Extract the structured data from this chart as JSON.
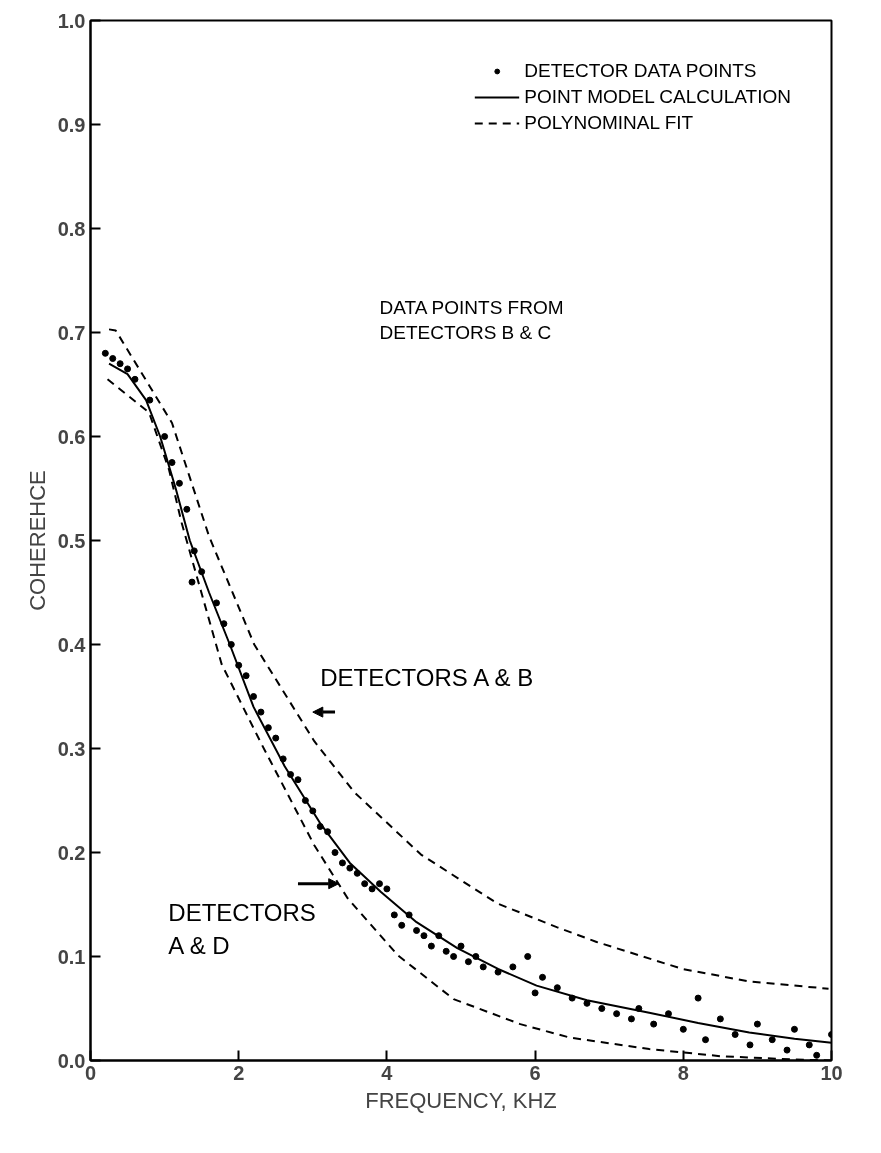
{
  "chart_data": {
    "type": "line",
    "xlabel": "FREQUENCY, KHZ",
    "ylabel": "COHEREHCE",
    "xlim": [
      0,
      10
    ],
    "ylim": [
      0,
      1
    ],
    "xticks": [
      0,
      2,
      4,
      6,
      8,
      10
    ],
    "yticks": [
      {
        "value": 0,
        "label": "0.0"
      },
      {
        "value": 0.1,
        "label": "0.1"
      },
      {
        "value": 0.2,
        "label": "0.2"
      },
      {
        "value": 0.3,
        "label": "0.3"
      },
      {
        "value": 0.4,
        "label": "0.4"
      },
      {
        "value": 0.5,
        "label": "0.5"
      },
      {
        "value": 0.6,
        "label": "0.6"
      },
      {
        "value": 0.7,
        "label": "0.7"
      },
      {
        "value": 0.8,
        "label": "0.8"
      },
      {
        "value": 0.9,
        "label": "0.9"
      },
      {
        "value": 1,
        "label": "1.0"
      }
    ],
    "grid": false,
    "legend": "top right",
    "series": [
      {
        "name": "DETECTOR DATA POINTS",
        "type": "scatter",
        "marker": "circle",
        "color": "#000000",
        "x": [
          0.2,
          0.3,
          0.4,
          0.5,
          0.6,
          0.8,
          1.0,
          1.1,
          1.2,
          1.3,
          1.37,
          1.4,
          1.5,
          1.7,
          1.8,
          1.9,
          2.0,
          2.1,
          2.2,
          2.3,
          2.4,
          2.5,
          2.6,
          2.7,
          2.8,
          2.9,
          3.0,
          3.1,
          3.2,
          3.3,
          3.4,
          3.5,
          3.6,
          3.7,
          3.8,
          3.9,
          4.0,
          4.1,
          4.2,
          4.3,
          4.4,
          4.5,
          4.6,
          4.7,
          4.8,
          4.9,
          5.0,
          5.1,
          5.2,
          5.3,
          5.5,
          5.7,
          5.9,
          6.0,
          6.1,
          6.3,
          6.5,
          6.7,
          6.9,
          7.1,
          7.3,
          7.4,
          7.6,
          7.8,
          8.0,
          8.2,
          8.3,
          8.5,
          8.7,
          8.9,
          9.0,
          9.2,
          9.4,
          9.5,
          9.7,
          9.8,
          10.0
        ],
        "values": [
          0.68,
          0.675,
          0.67,
          0.665,
          0.655,
          0.635,
          0.6,
          0.575,
          0.555,
          0.53,
          0.46,
          0.49,
          0.47,
          0.44,
          0.42,
          0.4,
          0.38,
          0.37,
          0.35,
          0.335,
          0.32,
          0.31,
          0.29,
          0.275,
          0.27,
          0.25,
          0.24,
          0.225,
          0.22,
          0.2,
          0.19,
          0.185,
          0.18,
          0.17,
          0.165,
          0.17,
          0.165,
          0.14,
          0.13,
          0.14,
          0.125,
          0.12,
          0.11,
          0.12,
          0.105,
          0.1,
          0.11,
          0.095,
          0.1,
          0.09,
          0.085,
          0.09,
          0.1,
          0.065,
          0.08,
          0.07,
          0.06,
          0.055,
          0.05,
          0.045,
          0.04,
          0.05,
          0.035,
          0.045,
          0.03,
          0.06,
          0.02,
          0.04,
          0.025,
          0.015,
          0.035,
          0.02,
          0.01,
          0.03,
          0.015,
          0.005,
          0.025
        ]
      },
      {
        "name": "POINT MODEL CALCULATION",
        "line_style": "solid",
        "color": "#000000",
        "x": [
          0.25,
          0.5,
          0.75,
          0.94,
          1.15,
          1.34,
          1.6,
          1.88,
          2.2,
          2.62,
          3.11,
          3.5,
          3.92,
          4.4,
          4.95,
          5.5,
          6.02,
          6.7,
          7.54,
          8.2,
          8.89,
          9.5,
          10
        ],
        "values": [
          0.67,
          0.66,
          0.635,
          0.6,
          0.55,
          0.5,
          0.45,
          0.4,
          0.34,
          0.283,
          0.227,
          0.19,
          0.162,
          0.133,
          0.108,
          0.088,
          0.072,
          0.058,
          0.046,
          0.036,
          0.027,
          0.021,
          0.017
        ]
      },
      {
        "name": "POLYNOMINAL FIT",
        "line_style": "dashed",
        "color": "#000000",
        "x": [
          0.25,
          0.34,
          1.1,
          1.6,
          2.21,
          3.02,
          3.56,
          4.46,
          5.49,
          6.3,
          6.83,
          7.99,
          8.89,
          9.96
        ],
        "values": [
          0.703,
          0.702,
          0.613,
          0.504,
          0.4,
          0.307,
          0.258,
          0.198,
          0.151,
          0.128,
          0.114,
          0.088,
          0.076,
          0.069
        ]
      },
      {
        "line_style": "dashed",
        "color": "#000000",
        "x": [
          0.23,
          0.79,
          1.06,
          1.23,
          1.77,
          2.31,
          3.02,
          3.47,
          4.15,
          4.9,
          5.8,
          6.47,
          7.54,
          8.52,
          9.5,
          10
        ],
        "values": [
          0.655,
          0.623,
          0.568,
          0.517,
          0.381,
          0.304,
          0.207,
          0.156,
          0.101,
          0.059,
          0.035,
          0.022,
          0.011,
          0.004,
          0.001,
          0.0
        ]
      }
    ],
    "annotations": [
      "DATA POINTS FROM\nDETECTORS B & C",
      {
        "text": "DETECTORS A & B",
        "x": 2.95,
        "y": 0.31
      },
      {
        "text": "DETECTORS\nA & D",
        "x": 3.35,
        "y": 0.17
      }
    ]
  }
}
